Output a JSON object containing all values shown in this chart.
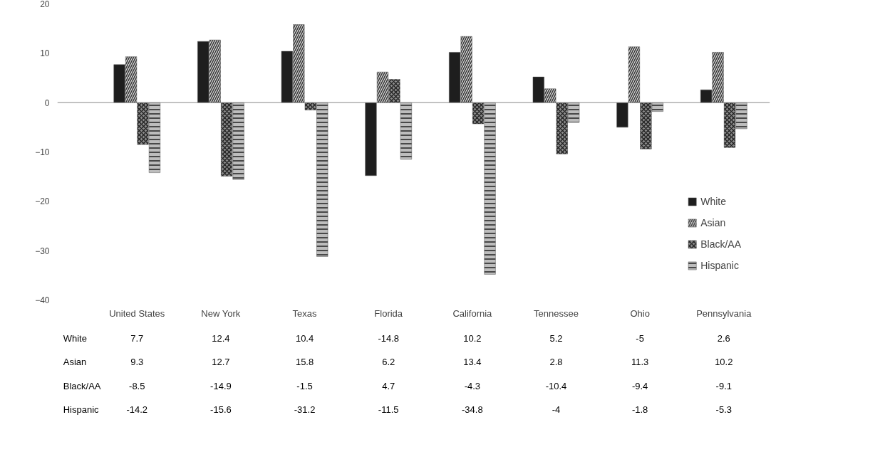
{
  "chart_data": {
    "type": "bar",
    "categories": [
      "United States",
      "New York",
      "Texas",
      "Florida",
      "California",
      "Tennessee",
      "Ohio",
      "Pennsylvania"
    ],
    "series": [
      {
        "name": "White",
        "color": "#1e1e1e",
        "values": [
          7.7,
          12.4,
          10.4,
          -14.8,
          10.2,
          5.2,
          -5,
          2.6
        ]
      },
      {
        "name": "Asian",
        "color": "#d9d9d9",
        "values": [
          9.3,
          12.7,
          15.8,
          6.2,
          13.4,
          2.8,
          11.3,
          10.2
        ]
      },
      {
        "name": "Black/AA",
        "color": "#8c8c8c",
        "values": [
          -8.5,
          -14.9,
          -1.5,
          4.7,
          -4.3,
          -10.4,
          -9.4,
          -9.1
        ]
      },
      {
        "name": "Hispanic",
        "color": "#bdbdbd",
        "values": [
          -14.2,
          -15.6,
          -31.2,
          -11.5,
          -34.8,
          -4,
          -1.8,
          -5.3
        ]
      }
    ],
    "ylim": [
      -40,
      20
    ],
    "yticks": [
      -40,
      -30,
      -20,
      -10,
      0,
      10,
      20
    ],
    "ref_lines": [
      {
        "axis": "y",
        "value": 0,
        "color": "#888888"
      }
    ],
    "grid": false,
    "legend": "bottom right",
    "data_labels": true
  }
}
